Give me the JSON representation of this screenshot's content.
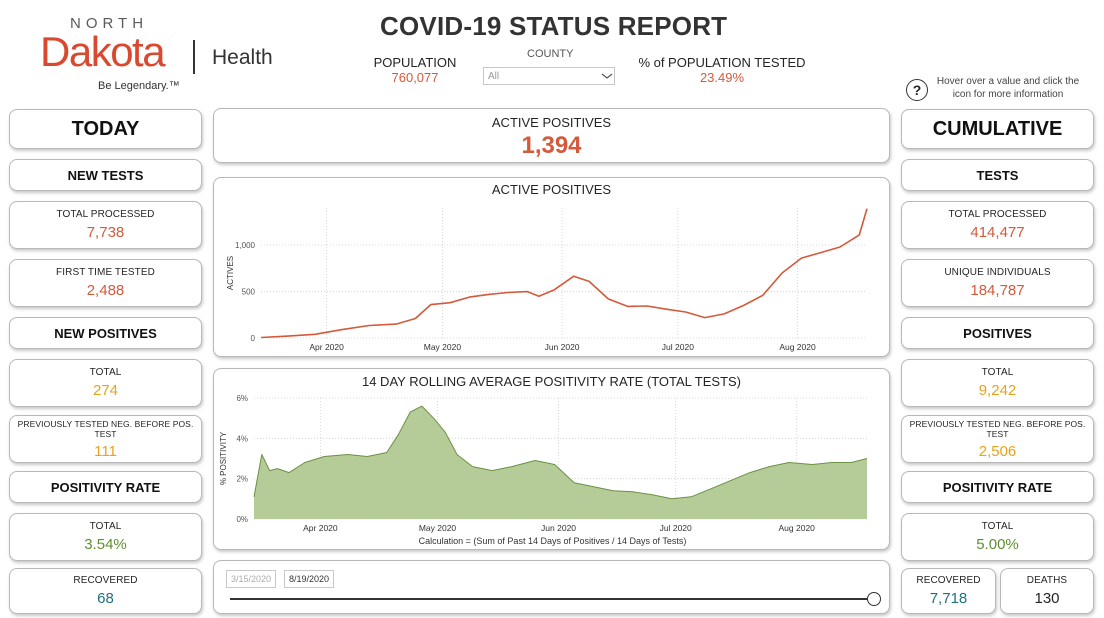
{
  "logo": {
    "north": "NORTH",
    "dakota": "Dakota",
    "health": "Health",
    "tagline": "Be Legendary.™"
  },
  "header": {
    "title": "COVID-19 STATUS REPORT",
    "population_label": "POPULATION",
    "population_value": "760,077",
    "county_label": "COUNTY",
    "county_value": "All",
    "tested_label": "% of POPULATION TESTED",
    "tested_value": "23.49%",
    "help_icon": "question-circle-icon",
    "help_text": "Hover over a value and click the icon for more information"
  },
  "today": {
    "title": "TODAY",
    "new_tests": "NEW TESTS",
    "total_processed_label": "TOTAL PROCESSED",
    "total_processed_value": "7,738",
    "first_time_label": "FIRST TIME TESTED",
    "first_time_value": "2,488",
    "new_positives": "NEW POSITIVES",
    "total_label": "TOTAL",
    "total_value": "274",
    "prev_neg_label": "PREVIOUSLY TESTED NEG. BEFORE POS. TEST",
    "prev_neg_value": "111",
    "positivity_rate": "POSITIVITY RATE",
    "rate_label": "TOTAL",
    "rate_value": "3.54%",
    "recovered_label": "RECOVERED",
    "recovered_value": "68"
  },
  "cumulative": {
    "title": "CUMULATIVE",
    "tests": "TESTS",
    "total_processed_label": "TOTAL PROCESSED",
    "total_processed_value": "414,477",
    "unique_label": "UNIQUE INDIVIDUALS",
    "unique_value": "184,787",
    "positives": "POSITIVES",
    "total_label": "TOTAL",
    "total_value": "9,242",
    "prev_neg_label": "PREVIOUSLY TESTED NEG. BEFORE POS. TEST",
    "prev_neg_value": "2,506",
    "positivity_rate": "POSITIVITY RATE",
    "rate_label": "TOTAL",
    "rate_value": "5.00%",
    "recovered_label": "RECOVERED",
    "recovered_value": "7,718",
    "deaths_label": "DEATHS",
    "deaths_value": "130"
  },
  "active": {
    "label": "ACTIVE POSITIVES",
    "value": "1,394"
  },
  "slider": {
    "start": "3/15/2020",
    "end": "8/19/2020",
    "position": 1.0
  },
  "colors": {
    "red": "#d35a3a",
    "orange": "#e8a21c",
    "green": "#5f8f31",
    "teal": "#1f7080",
    "area_fill": "#b5cc99",
    "area_stroke": "#6b9142"
  },
  "chart_data": [
    {
      "type": "line",
      "title": "ACTIVE POSITIVES",
      "ylabel": "ACTIVES",
      "xlabel": "",
      "x_ticks": [
        "Apr 2020",
        "May 2020",
        "Jun 2020",
        "Jul 2020",
        "Aug 2020"
      ],
      "y_ticks": [
        "0",
        "500",
        "1,000"
      ],
      "ylim": [
        0,
        1400
      ],
      "x_range": [
        "2020-03-15",
        "2020-08-19"
      ],
      "grid": true,
      "series": [
        {
          "x": [
            "2020-03-15",
            "2020-03-22",
            "2020-03-29",
            "2020-04-05",
            "2020-04-12",
            "2020-04-19",
            "2020-04-24",
            "2020-04-28",
            "2020-05-03",
            "2020-05-08",
            "2020-05-13",
            "2020-05-18",
            "2020-05-23",
            "2020-05-26",
            "2020-05-30",
            "2020-06-04",
            "2020-06-08",
            "2020-06-13",
            "2020-06-18",
            "2020-06-23",
            "2020-06-28",
            "2020-07-03",
            "2020-07-08",
            "2020-07-13",
            "2020-07-18",
            "2020-07-23",
            "2020-07-28",
            "2020-08-02",
            "2020-08-07",
            "2020-08-12",
            "2020-08-17",
            "2020-08-19"
          ],
          "y": [
            5,
            20,
            40,
            90,
            135,
            150,
            210,
            360,
            380,
            440,
            470,
            490,
            500,
            450,
            520,
            665,
            610,
            420,
            340,
            345,
            310,
            280,
            220,
            260,
            350,
            460,
            700,
            860,
            920,
            980,
            1110,
            1394
          ]
        }
      ]
    },
    {
      "type": "area",
      "title": "14 DAY ROLLING AVERAGE POSITIVITY RATE (TOTAL TESTS)",
      "ylabel": "% POSITIVITY",
      "xlabel": "Calculation = (Sum of Past 14 Days of Positives / 14 Days of Tests)",
      "x_ticks": [
        "Apr 2020",
        "May 2020",
        "Jun 2020",
        "Jul 2020",
        "Aug 2020"
      ],
      "y_ticks": [
        "0%",
        "2%",
        "4%",
        "6%"
      ],
      "ylim": [
        0,
        6
      ],
      "x_range": [
        "2020-03-15",
        "2020-08-19"
      ],
      "grid": true,
      "series": [
        {
          "x": [
            "2020-03-15",
            "2020-03-17",
            "2020-03-19",
            "2020-03-21",
            "2020-03-24",
            "2020-03-28",
            "2020-04-02",
            "2020-04-08",
            "2020-04-13",
            "2020-04-18",
            "2020-04-21",
            "2020-04-24",
            "2020-04-27",
            "2020-04-30",
            "2020-05-03",
            "2020-05-06",
            "2020-05-10",
            "2020-05-15",
            "2020-05-20",
            "2020-05-26",
            "2020-05-31",
            "2020-06-05",
            "2020-06-10",
            "2020-06-15",
            "2020-06-20",
            "2020-06-25",
            "2020-06-30",
            "2020-07-05",
            "2020-07-10",
            "2020-07-15",
            "2020-07-20",
            "2020-07-25",
            "2020-07-30",
            "2020-08-05",
            "2020-08-10",
            "2020-08-15",
            "2020-08-19"
          ],
          "y": [
            1.1,
            3.2,
            2.4,
            2.5,
            2.3,
            2.8,
            3.1,
            3.2,
            3.1,
            3.3,
            4.2,
            5.3,
            5.6,
            5.0,
            4.3,
            3.2,
            2.6,
            2.4,
            2.6,
            2.9,
            2.7,
            1.8,
            1.6,
            1.4,
            1.35,
            1.2,
            1.0,
            1.1,
            1.5,
            1.9,
            2.3,
            2.6,
            2.8,
            2.7,
            2.8,
            2.8,
            3.0
          ]
        }
      ]
    }
  ]
}
